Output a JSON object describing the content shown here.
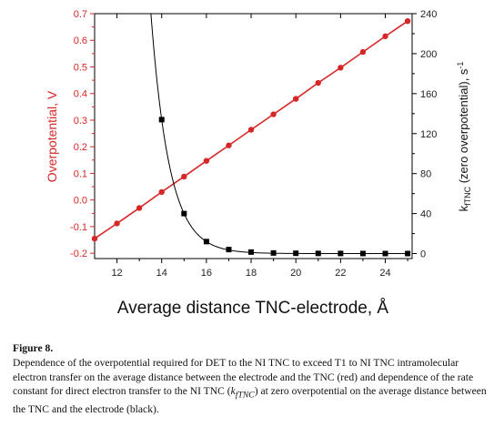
{
  "chart_data": {
    "type": "line",
    "xlabel": "Average distance TNC-electrode, Å",
    "ylabel_left": "Overpotential, V",
    "ylabel_right": "k_fTNC (zero overpotential), s⁻¹",
    "x": [
      11,
      12,
      13,
      14,
      15,
      16,
      17,
      18,
      19,
      20,
      21,
      22,
      23,
      24,
      25
    ],
    "xlim": [
      11,
      25.2
    ],
    "ylim_left": [
      -0.22,
      0.7
    ],
    "ylim_right": [
      -5,
      240
    ],
    "x_ticks": [
      "12",
      "14",
      "16",
      "18",
      "20",
      "22",
      "24"
    ],
    "y_left_ticks": [
      "-0.2",
      "-0.1",
      "0.0",
      "0.1",
      "0.2",
      "0.3",
      "0.4",
      "0.5",
      "0.6",
      "0.7"
    ],
    "y_right_ticks": [
      "0",
      "40",
      "80",
      "120",
      "160",
      "200",
      "240"
    ],
    "grid": false,
    "series": [
      {
        "axis": "left",
        "color": "#d62728",
        "marker": "circle",
        "x": [
          11,
          12,
          13,
          14,
          15,
          16,
          17,
          18,
          19,
          20,
          21,
          22,
          23,
          24,
          25
        ],
        "values": [
          -0.145,
          -0.088,
          -0.03,
          0.03,
          0.088,
          0.147,
          0.205,
          0.264,
          0.322,
          0.38,
          0.44,
          0.497,
          0.556,
          0.615,
          0.672
        ]
      },
      {
        "axis": "right",
        "color": "#000000",
        "marker": "square",
        "x": [
          14,
          15,
          16,
          17,
          18,
          19,
          20,
          21,
          22,
          23,
          24,
          25
        ],
        "values": [
          134,
          40,
          12,
          4,
          1.5,
          0.6,
          0.3,
          0.15,
          0.1,
          0.05,
          0.03,
          0.02
        ]
      }
    ]
  },
  "caption": {
    "figure_label": "Figure 8.",
    "text_1": "Dependence of the overpotential required for DET to the NI TNC to exceed T1 to NI TNC intramolecular electron transfer on the average distance between the electrode and the TNC (red) and dependence of the rate constant for direct electron transfer to the NI TNC (",
    "k_symbol": "kfTNC",
    "text_2": ") at zero overpotential on the average distance between the TNC and the electrode (black)."
  }
}
